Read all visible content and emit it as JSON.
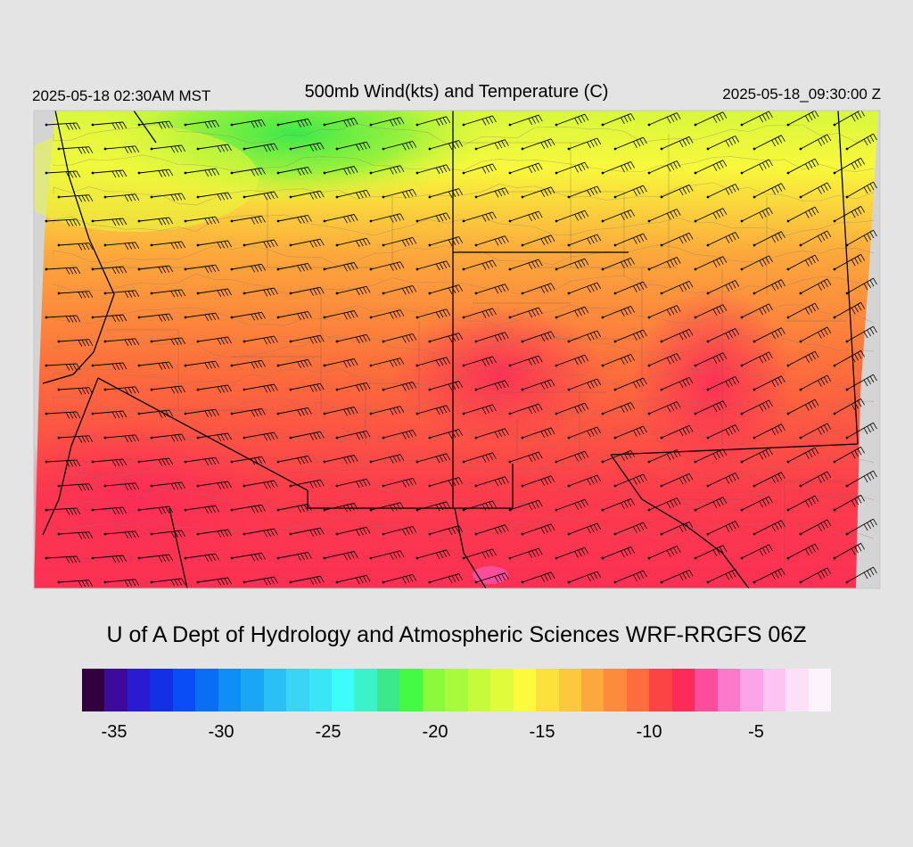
{
  "header": {
    "local_time": "2025-05-18 02:30AM MST",
    "title": "500mb Wind(kts) and Temperature (C)",
    "valid_time": "2025-05-18_09:30:00 Z"
  },
  "credit": "U of A Dept of Hydrology and Atmospheric Sciences WRF-RRGFS 06Z",
  "colorbar": {
    "colors": [
      "#33003f",
      "#3d0a9c",
      "#2a1bd0",
      "#1430e6",
      "#0a4cf5",
      "#0a6ef5",
      "#0f8ef5",
      "#1aa6f5",
      "#2ac0f5",
      "#3ad4f5",
      "#3ae6f5",
      "#3cfcfc",
      "#3cf2c8",
      "#3ce88c",
      "#44fa44",
      "#8cfa3c",
      "#a8fa3c",
      "#c8fa3c",
      "#e0fa3c",
      "#fcfa3c",
      "#fce03c",
      "#fcc83c",
      "#fca83c",
      "#fc8c3c",
      "#fc6c3c",
      "#fc4444",
      "#fc2c58",
      "#fc4c9c",
      "#fc78c8",
      "#fca4e8",
      "#fcc4f0",
      "#fce0f8",
      "#fcf4fc"
    ],
    "tick_labels": [
      "-35",
      "-30",
      "-25",
      "-20",
      "-15",
      "-10",
      "-5"
    ],
    "tick_values": [
      -35,
      -30,
      -25,
      -20,
      -15,
      -10,
      -5
    ],
    "min": -36.5,
    "max": -1.5
  },
  "map": {
    "field": "500mb temperature (C) with wind barbs (kts)",
    "temperature_gradient": {
      "north": "#f8f83c",
      "northwest": "#3ce88c",
      "central": "#fc8c3c",
      "south": "#fc3c50"
    },
    "wind_direction": "westerly / southwesterly",
    "state_boundary_color": "#000000",
    "contour_color": "#808080"
  }
}
